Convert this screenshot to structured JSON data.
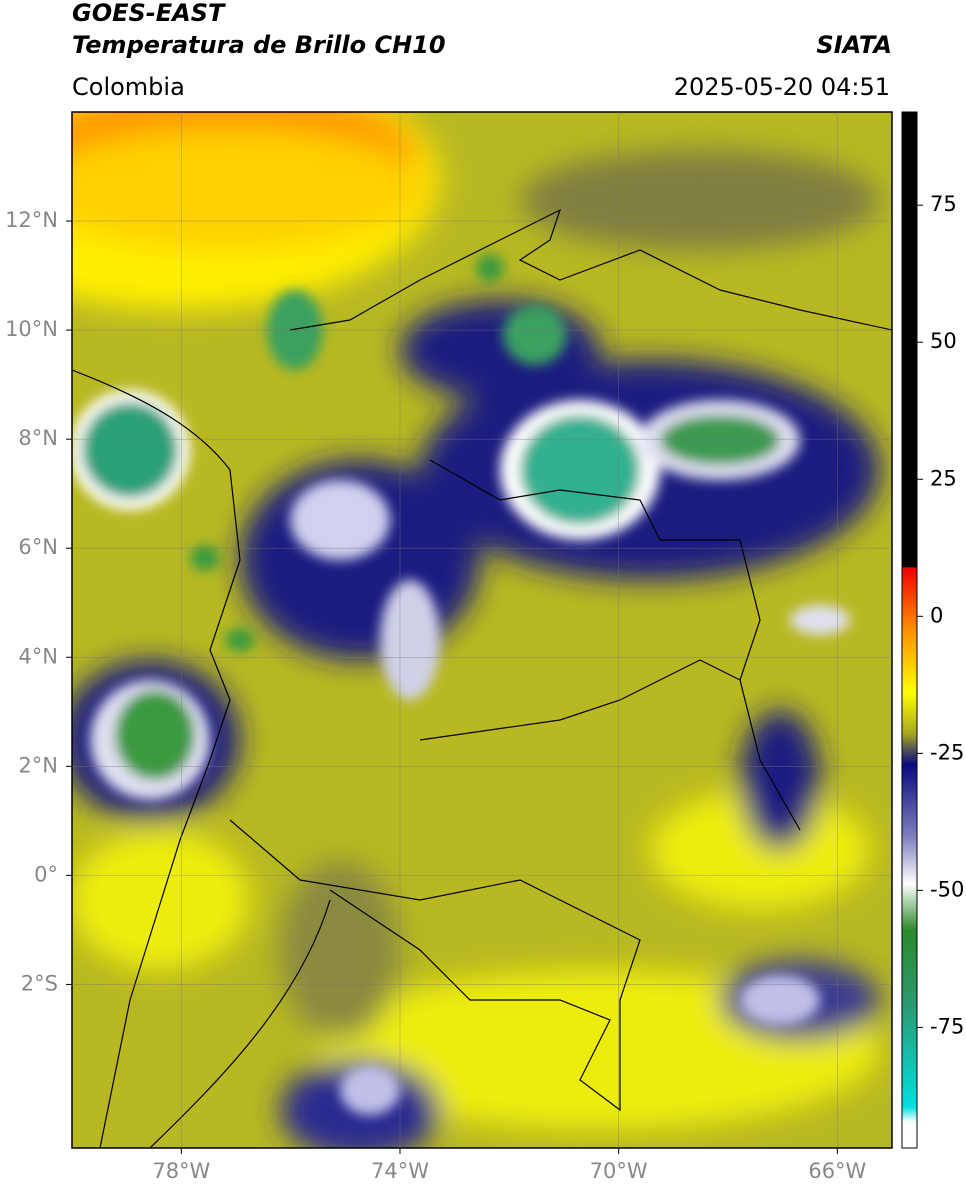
{
  "header": {
    "title_line1": "GOES-EAST",
    "title_line2": "Temperatura de Brillo CH10",
    "source": "SIATA",
    "region": "Colombia",
    "datetime": "2025-05-20 04:51"
  },
  "map": {
    "xlim": [
      -80,
      -65
    ],
    "ylim": [
      -5,
      14
    ],
    "xticks": [
      {
        "value": -78,
        "label": "78°W"
      },
      {
        "value": -74,
        "label": "74°W"
      },
      {
        "value": -70,
        "label": "70°W"
      },
      {
        "value": -66,
        "label": "66°W"
      }
    ],
    "yticks": [
      {
        "value": 12,
        "label": "12°N"
      },
      {
        "value": 10,
        "label": "10°N"
      },
      {
        "value": 8,
        "label": "8°N"
      },
      {
        "value": 6,
        "label": "6°N"
      },
      {
        "value": 4,
        "label": "4°N"
      },
      {
        "value": 2,
        "label": "2°N"
      },
      {
        "value": 0,
        "label": "0°"
      },
      {
        "value": -2,
        "label": "2°S"
      }
    ],
    "grid": true
  },
  "colorbar": {
    "lim": [
      -97,
      92
    ],
    "ticks": [
      75,
      50,
      25,
      0,
      -25,
      -50,
      -75
    ]
  }
}
